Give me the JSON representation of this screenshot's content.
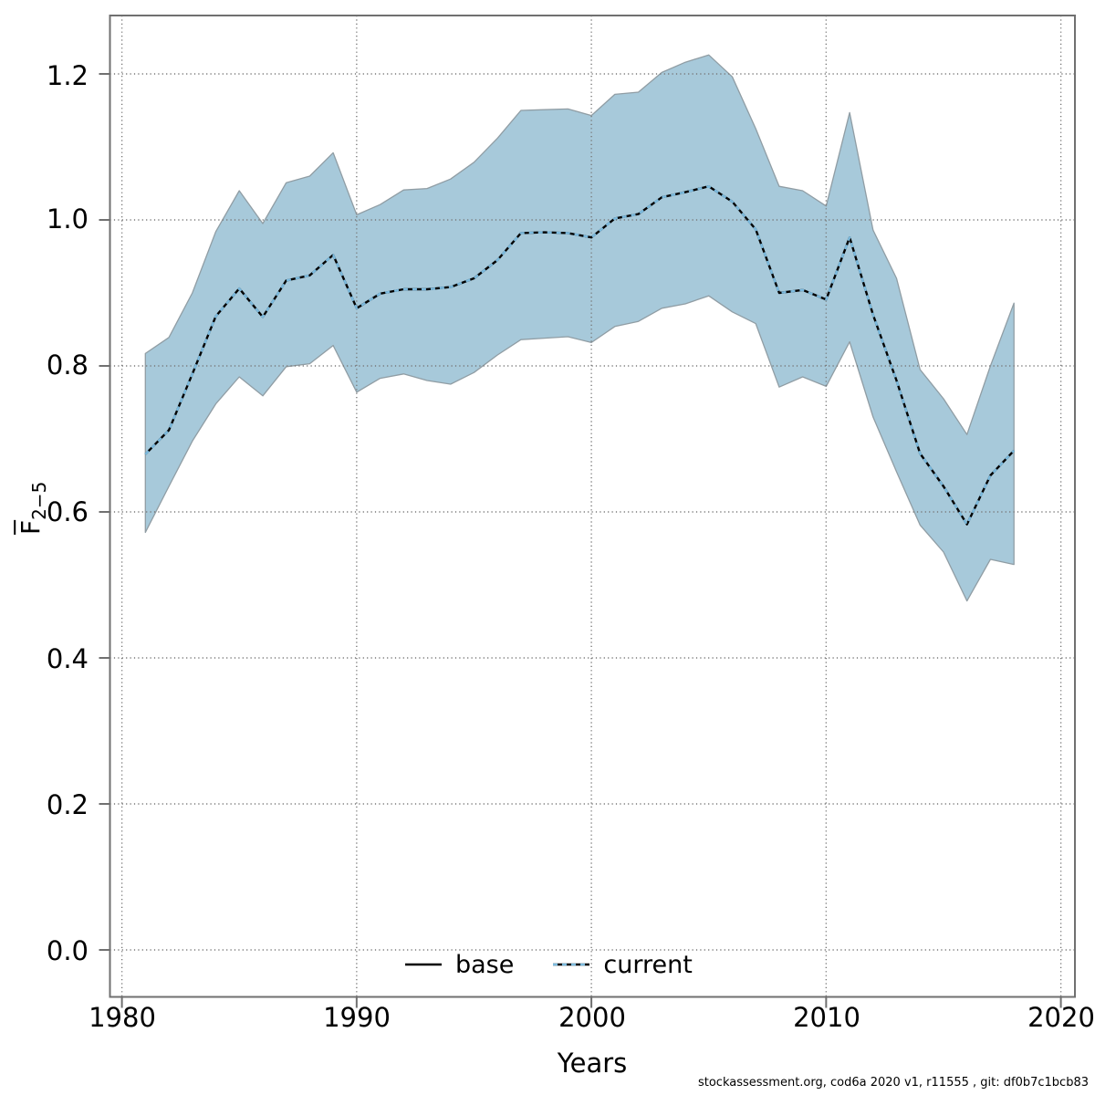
{
  "footer": {
    "attribution": "stockassessment.org, cod6a 2020 v1, r11555 , git: df0b7c1bcb83"
  },
  "chart_data": {
    "type": "line",
    "title": "",
    "xlabel": "Years",
    "ylabel": {
      "main": "F",
      "sub": "2−5"
    },
    "grid": true,
    "legend_position": "bottom-center-inside",
    "xlim": [
      1979.5,
      2020.6
    ],
    "ylim": [
      -0.064,
      1.28
    ],
    "x_ticks": [
      1980,
      1990,
      2000,
      2010,
      2020
    ],
    "x_tick_labels": [
      "1980",
      "1990",
      "2000",
      "2010",
      "2020"
    ],
    "y_ticks": [
      0.0,
      0.2,
      0.4,
      0.6,
      0.8,
      1.0,
      1.2
    ],
    "y_tick_labels_top_down": [
      "1.2",
      "1.0",
      "0.8",
      "0.6",
      "0.4",
      "0.2",
      "0.0"
    ],
    "legend": [
      {
        "label": "base",
        "style": "solid-black"
      },
      {
        "label": "current",
        "style": "dotted-lightblue-over-black"
      }
    ],
    "years": [
      1981,
      1982,
      1983,
      1984,
      1985,
      1986,
      1987,
      1988,
      1989,
      1990,
      1991,
      1992,
      1993,
      1994,
      1995,
      1996,
      1997,
      1998,
      1999,
      2000,
      2001,
      2002,
      2003,
      2004,
      2005,
      2006,
      2007,
      2008,
      2009,
      2010,
      2011,
      2012,
      2013,
      2014,
      2015,
      2016,
      2017,
      2018
    ],
    "series": [
      {
        "name": "base",
        "values": [
          0.679,
          0.712,
          0.789,
          0.868,
          0.906,
          0.867,
          0.917,
          0.924,
          0.952,
          0.879,
          0.899,
          0.905,
          0.905,
          0.908,
          0.92,
          0.945,
          0.982,
          0.983,
          0.982,
          0.976,
          1.002,
          1.008,
          1.031,
          1.038,
          1.046,
          1.025,
          0.987,
          0.9,
          0.904,
          0.891,
          0.976,
          0.87,
          0.78,
          0.68,
          0.635,
          0.583,
          0.65,
          0.684
        ]
      },
      {
        "name": "current",
        "values": [
          0.679,
          0.712,
          0.789,
          0.868,
          0.906,
          0.867,
          0.917,
          0.924,
          0.952,
          0.879,
          0.899,
          0.905,
          0.905,
          0.908,
          0.92,
          0.945,
          0.982,
          0.983,
          0.982,
          0.976,
          1.002,
          1.008,
          1.031,
          1.038,
          1.046,
          1.025,
          0.987,
          0.9,
          0.904,
          0.891,
          0.976,
          0.87,
          0.78,
          0.68,
          0.635,
          0.583,
          0.65,
          0.684
        ]
      }
    ],
    "band": {
      "name": "current-confidence-interval",
      "upper": [
        0.817,
        0.839,
        0.9,
        0.984,
        1.04,
        0.995,
        1.051,
        1.06,
        1.092,
        1.007,
        1.021,
        1.041,
        1.043,
        1.056,
        1.079,
        1.112,
        1.15,
        1.151,
        1.152,
        1.143,
        1.172,
        1.175,
        1.202,
        1.216,
        1.226,
        1.196,
        1.125,
        1.046,
        1.04,
        1.019,
        1.147,
        0.986,
        0.92,
        0.795,
        0.755,
        0.706,
        0.8,
        0.886
      ],
      "lower": [
        0.572,
        0.635,
        0.697,
        0.748,
        0.785,
        0.759,
        0.799,
        0.803,
        0.828,
        0.764,
        0.783,
        0.789,
        0.78,
        0.775,
        0.791,
        0.815,
        0.836,
        0.838,
        0.84,
        0.832,
        0.854,
        0.861,
        0.879,
        0.885,
        0.896,
        0.874,
        0.858,
        0.771,
        0.785,
        0.772,
        0.833,
        0.73,
        0.655,
        0.582,
        0.545,
        0.478,
        0.535,
        0.528
      ]
    },
    "colors": {
      "band_fill": "#a7c9da",
      "band_edge": "#909da4",
      "base_line": "#000000",
      "current_line": "#7bbade",
      "grid": "#777777",
      "frame": "#707070"
    }
  }
}
